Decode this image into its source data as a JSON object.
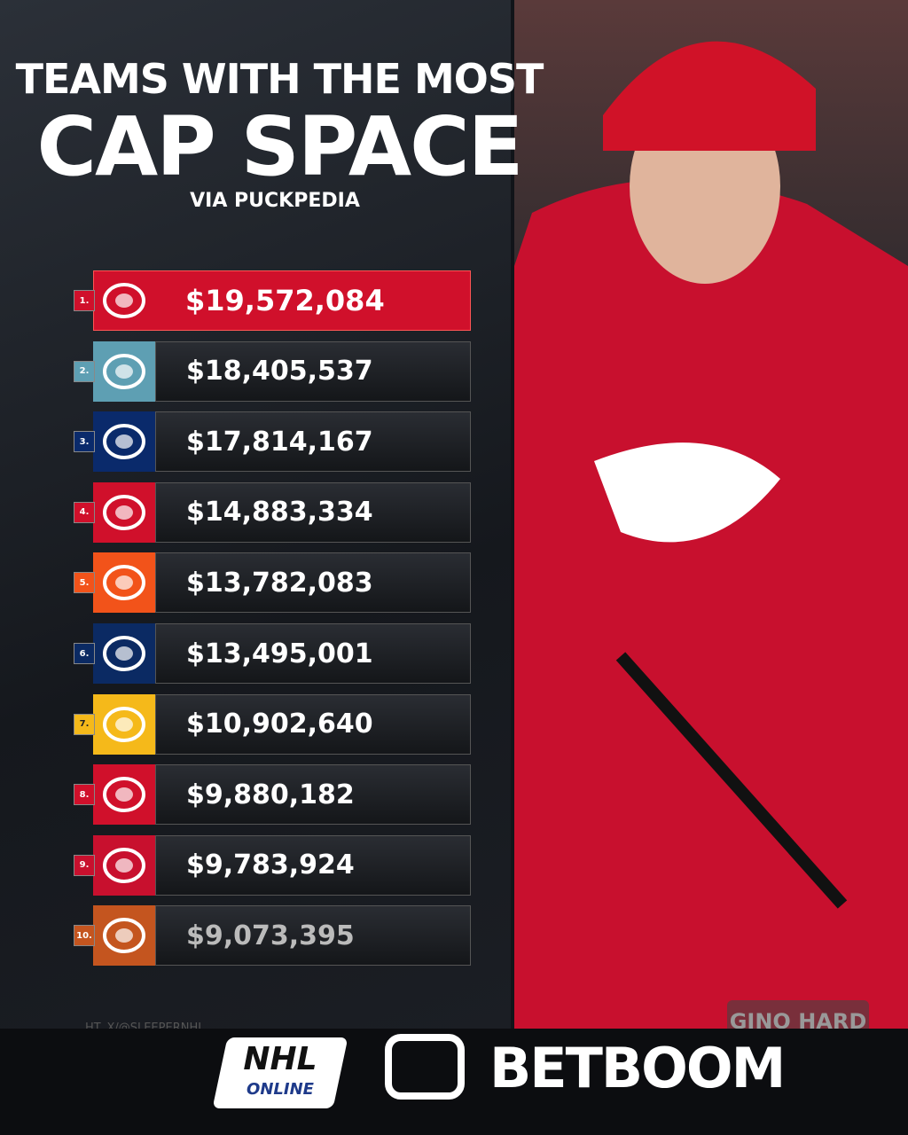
{
  "header": {
    "title_line1": "TEAMS WITH THE MOST",
    "title_line2": "CAP SPACE",
    "source": "VIA PUCKPEDIA"
  },
  "list": {
    "rows": [
      {
        "rank": "1.",
        "value": "$19,572,084",
        "color": "#d0102b"
      },
      {
        "rank": "2.",
        "value": "$18,405,537",
        "color": "#5e9fb3"
      },
      {
        "rank": "3.",
        "value": "$17,814,167",
        "color": "#0a2a6b"
      },
      {
        "rank": "4.",
        "value": "$14,883,334",
        "color": "#d0102b"
      },
      {
        "rank": "5.",
        "value": "$13,782,083",
        "color": "#f2531a"
      },
      {
        "rank": "6.",
        "value": "$13,495,001",
        "color": "#0b2a63"
      },
      {
        "rank": "7.",
        "value": "$10,902,640",
        "color": "#f5b91a"
      },
      {
        "rank": "8.",
        "value": "$9,880,182",
        "color": "#d0102b"
      },
      {
        "rank": "9.",
        "value": "$9,783,924",
        "color": "#c8102e"
      },
      {
        "rank": "10.",
        "value": "$9,073,395",
        "color": "#c4551f"
      }
    ]
  },
  "credit": "HT. X/@SLEEPERNHL",
  "footer": {
    "logo1_top": "NHL",
    "logo1_bottom": "ONLINE",
    "logo2": "BETBOOM"
  },
  "photo": {
    "watermark": "GINO HARD"
  }
}
